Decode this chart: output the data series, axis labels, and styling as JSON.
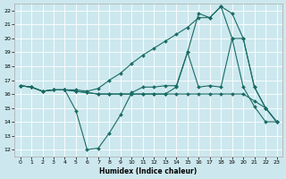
{
  "xlabel": "Humidex (Indice chaleur)",
  "background_color": "#cce8ee",
  "grid_color": "#ffffff",
  "line_color": "#1a6b64",
  "xlim": [
    -0.5,
    23.5
  ],
  "ylim": [
    11.5,
    22.5
  ],
  "xticks": [
    0,
    1,
    2,
    3,
    4,
    5,
    6,
    7,
    8,
    9,
    10,
    11,
    12,
    13,
    14,
    15,
    16,
    17,
    18,
    19,
    20,
    21,
    22,
    23
  ],
  "yticks": [
    12,
    13,
    14,
    15,
    16,
    17,
    18,
    19,
    20,
    21,
    22
  ],
  "series": [
    [
      16.6,
      16.5,
      16.2,
      16.3,
      16.3,
      14.8,
      12.0,
      12.1,
      13.2,
      14.5,
      16.1,
      16.5,
      16.5,
      16.6,
      16.6,
      19.0,
      16.5,
      16.6,
      16.5,
      20.0,
      16.5,
      15.1,
      14.0,
      14.0
    ],
    [
      16.6,
      16.5,
      16.2,
      16.3,
      16.3,
      16.3,
      16.2,
      16.4,
      17.0,
      17.5,
      18.2,
      18.8,
      19.3,
      19.8,
      20.3,
      20.8,
      21.5,
      21.5,
      22.3,
      21.8,
      20.0,
      16.5,
      15.0,
      14.0
    ],
    [
      16.6,
      16.5,
      16.2,
      16.3,
      16.3,
      16.2,
      16.1,
      16.0,
      16.0,
      16.0,
      16.0,
      16.0,
      16.0,
      16.0,
      16.5,
      19.0,
      21.8,
      21.5,
      22.3,
      20.0,
      20.0,
      16.5,
      15.0,
      14.0
    ],
    [
      16.6,
      16.5,
      16.2,
      16.3,
      16.3,
      16.2,
      16.1,
      16.0,
      16.0,
      16.0,
      16.0,
      16.0,
      16.0,
      16.0,
      16.0,
      16.0,
      16.0,
      16.0,
      16.0,
      16.0,
      16.0,
      15.5,
      15.0,
      14.0
    ]
  ]
}
